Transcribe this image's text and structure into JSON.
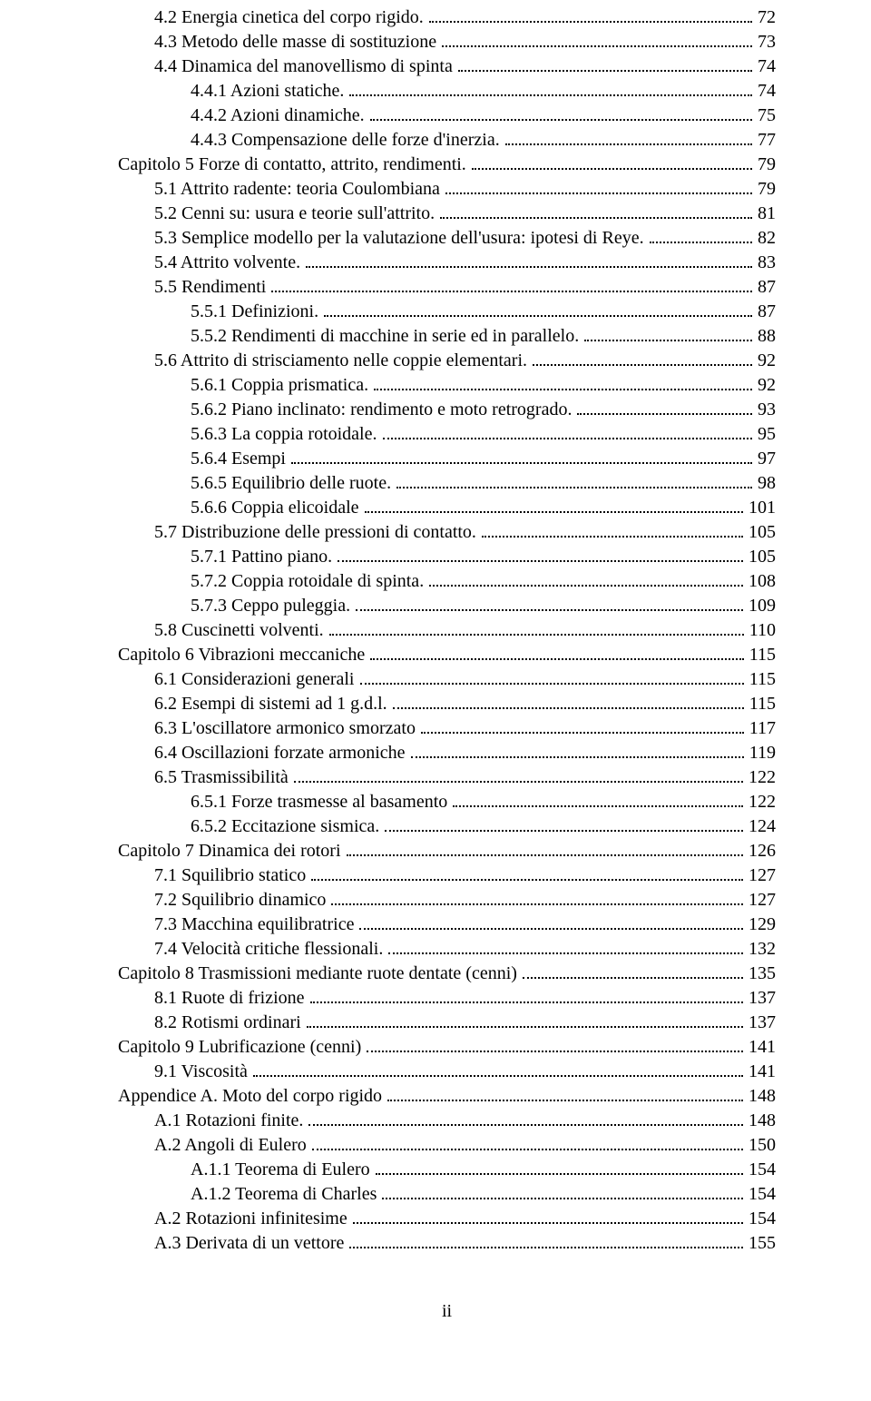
{
  "page_number_footer": "ii",
  "entries": [
    {
      "indent": 1,
      "label": "4.2    Energia cinetica del corpo rigido.",
      "page": "72"
    },
    {
      "indent": 1,
      "label": "4.3    Metodo delle masse di sostituzione",
      "page": "73"
    },
    {
      "indent": 1,
      "label": "4.4    Dinamica del manovellismo di spinta",
      "page": "74"
    },
    {
      "indent": 2,
      "label": "4.4.1     Azioni statiche.",
      "page": "74"
    },
    {
      "indent": 2,
      "label": "4.4.2     Azioni dinamiche.",
      "page": "75"
    },
    {
      "indent": 2,
      "label": "4.4.3     Compensazione delle forze d'inerzia.",
      "page": "77"
    },
    {
      "indent": 0,
      "label": "Capitolo 5     Forze di contatto, attrito, rendimenti.",
      "page": "79"
    },
    {
      "indent": 1,
      "label": "5.1    Attrito radente: teoria Coulombiana",
      "page": "79"
    },
    {
      "indent": 1,
      "label": "5.2    Cenni su: usura e teorie sull'attrito.",
      "page": "81"
    },
    {
      "indent": 1,
      "label": "5.3    Semplice modello per la valutazione dell'usura: ipotesi di Reye.",
      "page": "82"
    },
    {
      "indent": 1,
      "label": "5.4    Attrito volvente.",
      "page": "83"
    },
    {
      "indent": 1,
      "label": "5.5    Rendimenti",
      "page": "87"
    },
    {
      "indent": 2,
      "label": "5.5.1     Definizioni.",
      "page": "87"
    },
    {
      "indent": 2,
      "label": "5.5.2     Rendimenti di macchine in serie ed in parallelo.",
      "page": "88"
    },
    {
      "indent": 1,
      "label": "5.6    Attrito di strisciamento nelle coppie elementari.",
      "page": "92"
    },
    {
      "indent": 2,
      "label": "5.6.1     Coppia prismatica.",
      "page": "92"
    },
    {
      "indent": 2,
      "label": "5.6.2     Piano inclinato: rendimento e moto retrogrado.",
      "page": "93"
    },
    {
      "indent": 2,
      "label": "5.6.3     La coppia rotoidale.",
      "page": "95"
    },
    {
      "indent": 2,
      "label": "5.6.4     Esempi",
      "page": "97"
    },
    {
      "indent": 2,
      "label": "5.6.5     Equilibrio delle ruote.",
      "page": "98"
    },
    {
      "indent": 2,
      "label": "5.6.6     Coppia elicoidale",
      "page": "101"
    },
    {
      "indent": 1,
      "label": "5.7    Distribuzione delle pressioni di contatto.",
      "page": "105"
    },
    {
      "indent": 2,
      "label": "5.7.1     Pattino piano.",
      "page": "105"
    },
    {
      "indent": 2,
      "label": "5.7.2     Coppia rotoidale di spinta.",
      "page": "108"
    },
    {
      "indent": 2,
      "label": "5.7.3     Ceppo puleggia.",
      "page": "109"
    },
    {
      "indent": 1,
      "label": "5.8    Cuscinetti volventi.",
      "page": "110"
    },
    {
      "indent": 0,
      "label": "Capitolo 6     Vibrazioni meccaniche",
      "page": "115"
    },
    {
      "indent": 1,
      "label": "6.1    Considerazioni generali",
      "page": "115"
    },
    {
      "indent": 1,
      "label": "6.2    Esempi di sistemi ad 1 g.d.l.",
      "page": "115"
    },
    {
      "indent": 1,
      "label": "6.3    L'oscillatore armonico smorzato",
      "page": "117"
    },
    {
      "indent": 1,
      "label": "6.4    Oscillazioni forzate armoniche",
      "page": "119"
    },
    {
      "indent": 1,
      "label": "6.5    Trasmissibilità",
      "page": "122"
    },
    {
      "indent": 2,
      "label": "6.5.1     Forze trasmesse al basamento",
      "page": "122"
    },
    {
      "indent": 2,
      "label": "6.5.2     Eccitazione sismica.",
      "page": "124"
    },
    {
      "indent": 0,
      "label": "Capitolo 7     Dinamica dei rotori",
      "page": "126"
    },
    {
      "indent": 1,
      "label": "7.1    Squilibrio statico",
      "page": "127"
    },
    {
      "indent": 1,
      "label": "7.2    Squilibrio dinamico",
      "page": "127"
    },
    {
      "indent": 1,
      "label": "7.3    Macchina equilibratrice",
      "page": "129"
    },
    {
      "indent": 1,
      "label": "7.4    Velocità critiche flessionali.",
      "page": "132"
    },
    {
      "indent": 0,
      "label": "Capitolo 8     Trasmissioni mediante ruote dentate (cenni)",
      "page": "135"
    },
    {
      "indent": 1,
      "label": "8.1    Ruote di frizione",
      "page": "137"
    },
    {
      "indent": 1,
      "label": "8.2    Rotismi ordinari",
      "page": "137"
    },
    {
      "indent": 0,
      "label": "Capitolo 9     Lubrificazione (cenni)",
      "page": "141"
    },
    {
      "indent": 1,
      "label": "9.1    Viscosità",
      "page": "141"
    },
    {
      "indent": 0,
      "label": "Appendice A. Moto del corpo rigido",
      "page": "148"
    },
    {
      "indent": 1,
      "label": "A.1   Rotazioni finite.",
      "page": "148"
    },
    {
      "indent": 1,
      "label": "A.2   Angoli di Eulero",
      "page": "150"
    },
    {
      "indent": 2,
      "label": "A.1.1    Teorema di Eulero",
      "page": "154"
    },
    {
      "indent": 2,
      "label": "A.1.2    Teorema di Charles",
      "page": "154"
    },
    {
      "indent": 1,
      "label": "A.2   Rotazioni infinitesime",
      "page": "154"
    },
    {
      "indent": 1,
      "label": "A.3   Derivata di un vettore",
      "page": "155"
    }
  ]
}
